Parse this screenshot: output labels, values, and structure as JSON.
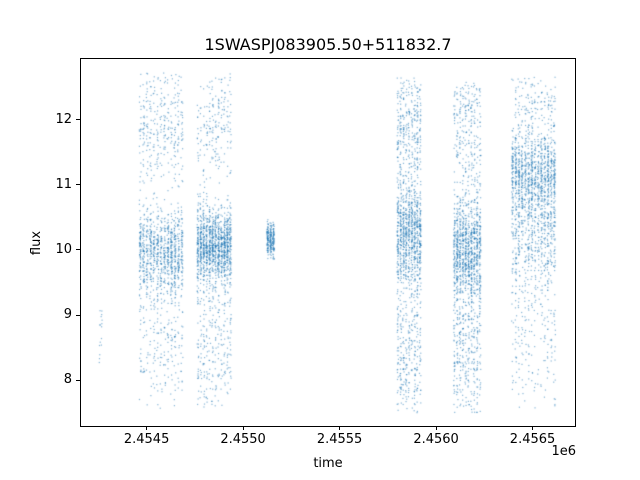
{
  "chart_data": {
    "type": "scatter",
    "title": "1SWASPJ083905.50+511832.7",
    "xlabel": "time",
    "ylabel": "flux",
    "x_offset_text": "1e6",
    "xlim": [
      2454160,
      2456720
    ],
    "ylim": [
      7.3,
      12.93
    ],
    "grid": false,
    "legend": "none",
    "frame_color": "#000000",
    "background": "#ffffff",
    "marker": {
      "color": "#1f77b4",
      "alpha": 0.55,
      "size": 1
    },
    "seed": 42,
    "xticks": [
      {
        "value": 2454500,
        "label": "2.4545"
      },
      {
        "value": 2455000,
        "label": "2.4550"
      },
      {
        "value": 2455500,
        "label": "2.4555"
      },
      {
        "value": 2456000,
        "label": "2.4560"
      },
      {
        "value": 2456500,
        "label": "2.4565"
      }
    ],
    "yticks": [
      {
        "value": 8,
        "label": "8"
      },
      {
        "value": 9,
        "label": "9"
      },
      {
        "value": 10,
        "label": "10"
      },
      {
        "value": 11,
        "label": "11"
      },
      {
        "value": 12,
        "label": "12"
      }
    ],
    "clusters": [
      {
        "x_min": 2454252,
        "x_max": 2454272,
        "n": 16,
        "columns": 2,
        "y_min": 8.2,
        "y_max": 9.3,
        "bands": [
          {
            "mean": 8.7,
            "sigma": 0.3,
            "frac": 1.0
          }
        ]
      },
      {
        "x_min": 2454458,
        "x_max": 2454692,
        "n": 1450,
        "columns": 13,
        "y_min": 7.55,
        "y_max": 12.72,
        "bands": [
          {
            "mean": 9.97,
            "sigma": 0.33,
            "frac": 0.64
          },
          {
            "mean": 11.9,
            "sigma": 0.5,
            "frac": 0.2
          },
          {
            "mean": 8.6,
            "sigma": 0.6,
            "frac": 0.16
          }
        ]
      },
      {
        "x_min": 2454758,
        "x_max": 2454942,
        "n": 1700,
        "columns": 12,
        "y_min": 7.55,
        "y_max": 12.75,
        "bands": [
          {
            "mean": 10.05,
            "sigma": 0.3,
            "frac": 0.7
          },
          {
            "mean": 11.9,
            "sigma": 0.5,
            "frac": 0.13
          },
          {
            "mean": 8.5,
            "sigma": 0.62,
            "frac": 0.17
          }
        ]
      },
      {
        "x_min": 2455120,
        "x_max": 2455165,
        "n": 230,
        "columns": 3,
        "y_min": 9.85,
        "y_max": 10.5,
        "bands": [
          {
            "mean": 10.15,
            "sigma": 0.13,
            "frac": 1.0
          }
        ]
      },
      {
        "x_min": 2455795,
        "x_max": 2455925,
        "n": 1500,
        "columns": 9,
        "y_min": 7.5,
        "y_max": 12.65,
        "bands": [
          {
            "mean": 10.25,
            "sigma": 0.4,
            "frac": 0.6
          },
          {
            "mean": 11.9,
            "sigma": 0.5,
            "frac": 0.2
          },
          {
            "mean": 8.4,
            "sigma": 0.62,
            "frac": 0.2
          }
        ]
      },
      {
        "x_min": 2456088,
        "x_max": 2456235,
        "n": 1600,
        "columns": 10,
        "y_min": 7.5,
        "y_max": 12.6,
        "bands": [
          {
            "mean": 10.0,
            "sigma": 0.4,
            "frac": 0.62
          },
          {
            "mean": 11.8,
            "sigma": 0.55,
            "frac": 0.16
          },
          {
            "mean": 8.5,
            "sigma": 0.65,
            "frac": 0.22
          }
        ]
      },
      {
        "x_min": 2456388,
        "x_max": 2456622,
        "n": 1850,
        "columns": 14,
        "y_min": 7.55,
        "y_max": 12.65,
        "bands": [
          {
            "mean": 11.15,
            "sigma": 0.35,
            "frac": 0.55
          },
          {
            "mean": 10.2,
            "sigma": 0.4,
            "frac": 0.25
          },
          {
            "mean": 8.7,
            "sigma": 0.7,
            "frac": 0.12
          },
          {
            "mean": 12.2,
            "sigma": 0.28,
            "frac": 0.08
          }
        ]
      }
    ]
  }
}
